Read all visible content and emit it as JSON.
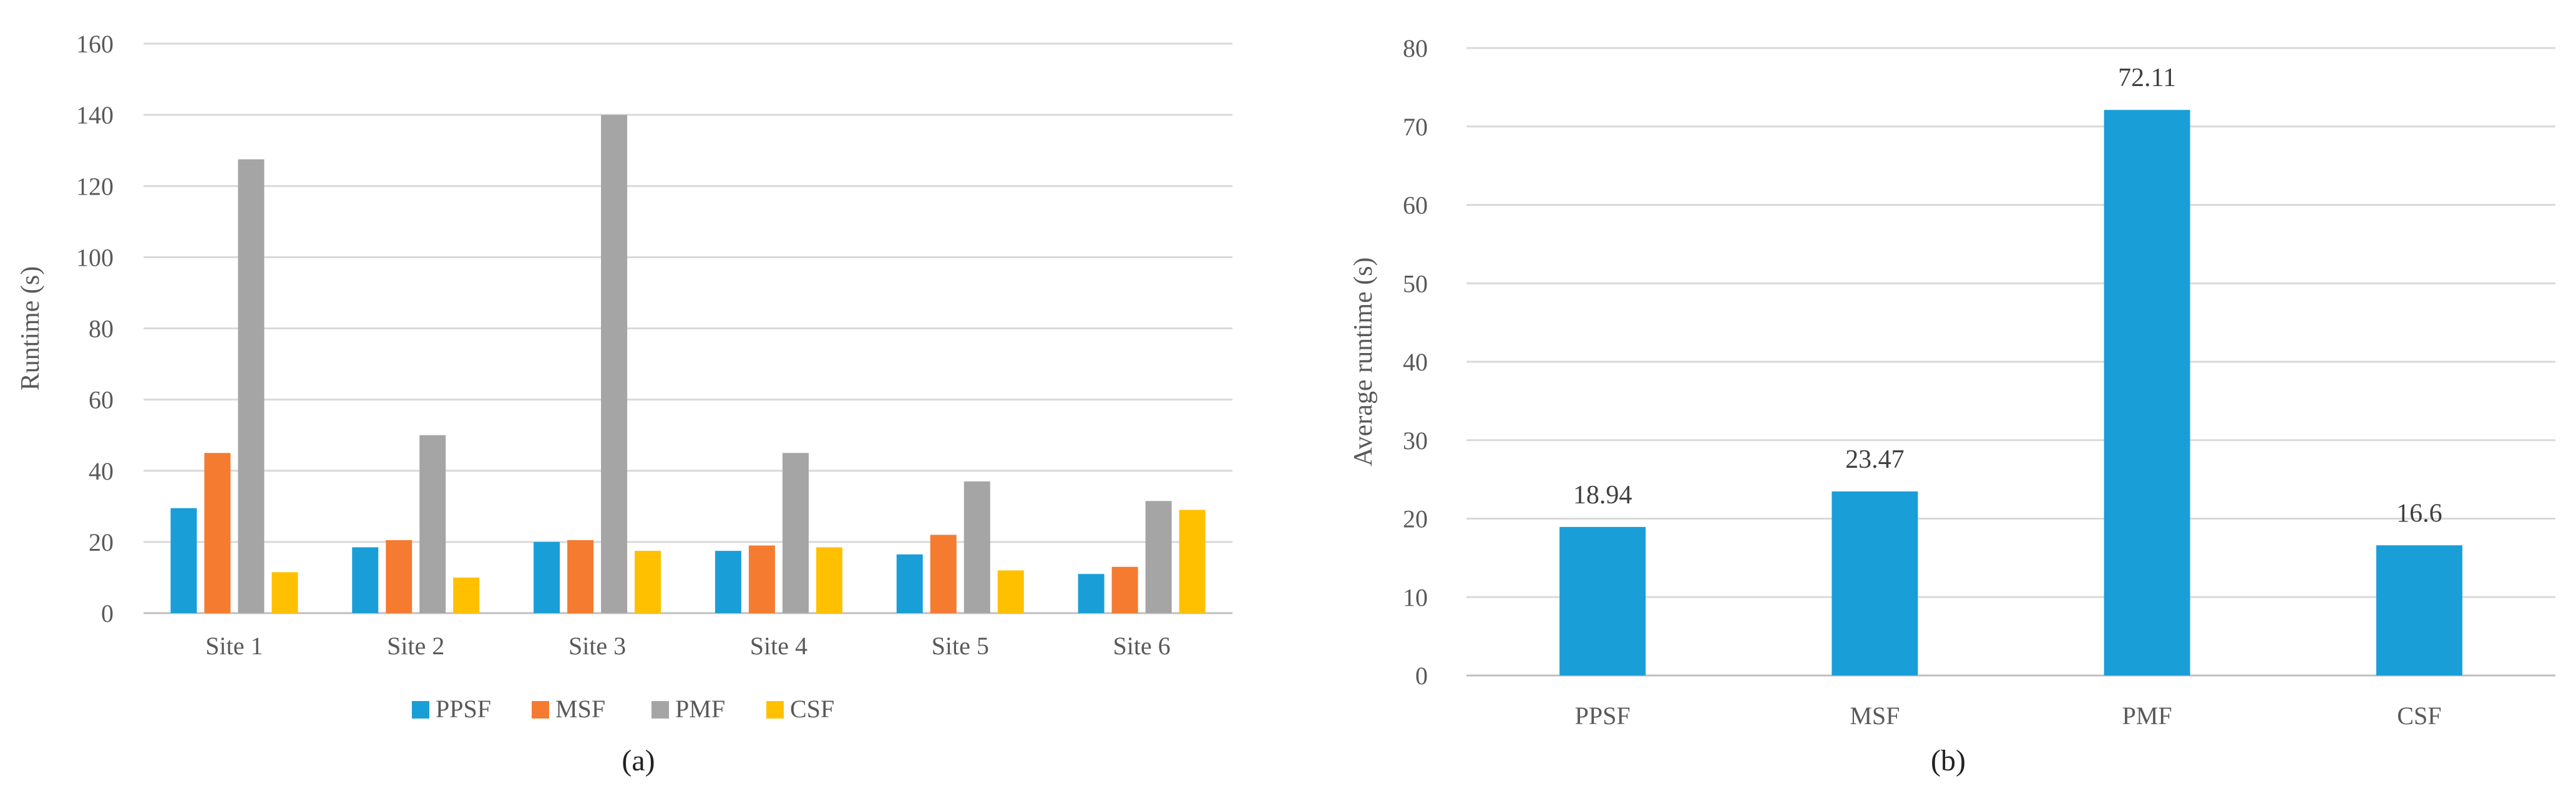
{
  "chart_data": [
    {
      "id": "a",
      "type": "bar",
      "caption": "(a)",
      "ylabel": "Runtime (s)",
      "xlabel": "",
      "ylim": [
        0,
        160
      ],
      "yticks": [
        0,
        20,
        40,
        60,
        80,
        100,
        120,
        140,
        160
      ],
      "categories": [
        "Site 1",
        "Site 2",
        "Site 3",
        "Site 4",
        "Site 5",
        "Site 6"
      ],
      "legend_position": "bottom",
      "grid": true,
      "series": [
        {
          "name": "PPSF",
          "color": "#1a9ed8",
          "values": [
            29.5,
            18.5,
            20,
            17.5,
            16.5,
            11
          ]
        },
        {
          "name": "MSF",
          "color": "#f47b30",
          "values": [
            45,
            20.5,
            20.5,
            19,
            22,
            13
          ]
        },
        {
          "name": "PMF",
          "color": "#a5a5a5",
          "values": [
            127.5,
            50,
            140,
            45,
            37,
            31.5
          ]
        },
        {
          "name": "CSF",
          "color": "#ffc000",
          "values": [
            11.5,
            10,
            17.5,
            18.5,
            12,
            29
          ]
        }
      ]
    },
    {
      "id": "b",
      "type": "bar",
      "caption": "(b)",
      "ylabel": "Average runtime (s)",
      "xlabel": "",
      "ylim": [
        0,
        80
      ],
      "yticks": [
        0,
        10,
        20,
        30,
        40,
        50,
        60,
        70,
        80
      ],
      "categories": [
        "PPSF",
        "MSF",
        "PMF",
        "CSF"
      ],
      "grid": true,
      "color": "#1a9ed8",
      "values": [
        18.94,
        23.47,
        72.11,
        16.6
      ],
      "data_labels": [
        "18.94",
        "23.47",
        "72.11",
        "16.6"
      ]
    }
  ]
}
